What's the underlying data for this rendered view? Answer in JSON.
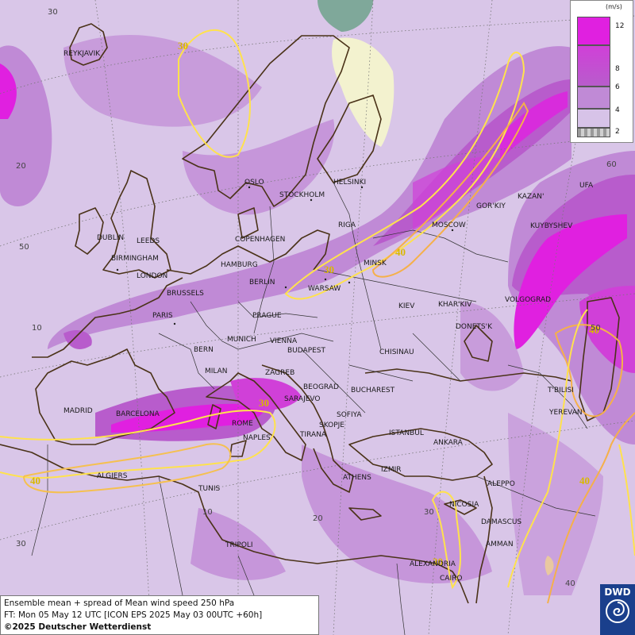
{
  "legend": {
    "unit": "(m/s)",
    "levels": [
      {
        "label": "12",
        "color": "#e020e0"
      },
      {
        "label": "8",
        "color": "#b85ccc"
      },
      {
        "label": "6",
        "color": "#c08ad6"
      },
      {
        "label": "4",
        "color": "#d7c3e8"
      },
      {
        "label": "2",
        "color": "#9a9a9a"
      }
    ]
  },
  "footer": {
    "line1": "Ensemble mean + spread of Mean wind speed 250 hPa",
    "line2": "FT: Mon 05 May 12 UTC [ICON EPS 2025 May 03 00UTC +60h]",
    "copyright": "©2025 Deutscher Wetterdienst"
  },
  "logo": {
    "text": "DWD"
  },
  "contour_labels": [
    "30",
    "30",
    "40",
    "40",
    "40",
    "40",
    "30",
    "30"
  ],
  "grid_labels": [
    "30",
    "20",
    "50",
    "10",
    "60",
    "50",
    "40",
    "30",
    "10",
    "20",
    "30"
  ],
  "cities": [
    "REYKJAVIK",
    "OSLO",
    "STOCKHOLM",
    "HELSINKI",
    "RIGA",
    "DUBLIN",
    "LEEDS",
    "BIRMINGHAM",
    "LONDON",
    "COPENHAGEN",
    "HAMBURG",
    "BERLIN",
    "BRUSSELS",
    "PARIS",
    "WARSAW",
    "MINSK",
    "MOSCOW",
    "GOR'KIY",
    "KAZAN'",
    "UFA",
    "KUYBYSHEV",
    "VOLGOGRAD",
    "KHAR'KIV",
    "KIEV",
    "DONETS'K",
    "PRAGUE",
    "MUNICH",
    "VIENNA",
    "BUDAPEST",
    "BERN",
    "MILAN",
    "ZAGREB",
    "SARAJEVO",
    "BEOGRAD",
    "BUCHAREST",
    "CHISINAU",
    "SOFIYA",
    "SKOPJE",
    "TIRANA",
    "ROME",
    "NAPLES",
    "MADRID",
    "BARCELONA",
    "ALGIERS",
    "TUNIS",
    "TRIPOLI",
    "ATHENS",
    "IZMIR",
    "ISTANBUL",
    "ANKARA",
    "T'BILISI",
    "YEREVAN",
    "ALEPPO",
    "NICOSIA",
    "DAMASCUS",
    "AMMAN",
    "ALEXANDRIA",
    "CAIRO"
  ]
}
